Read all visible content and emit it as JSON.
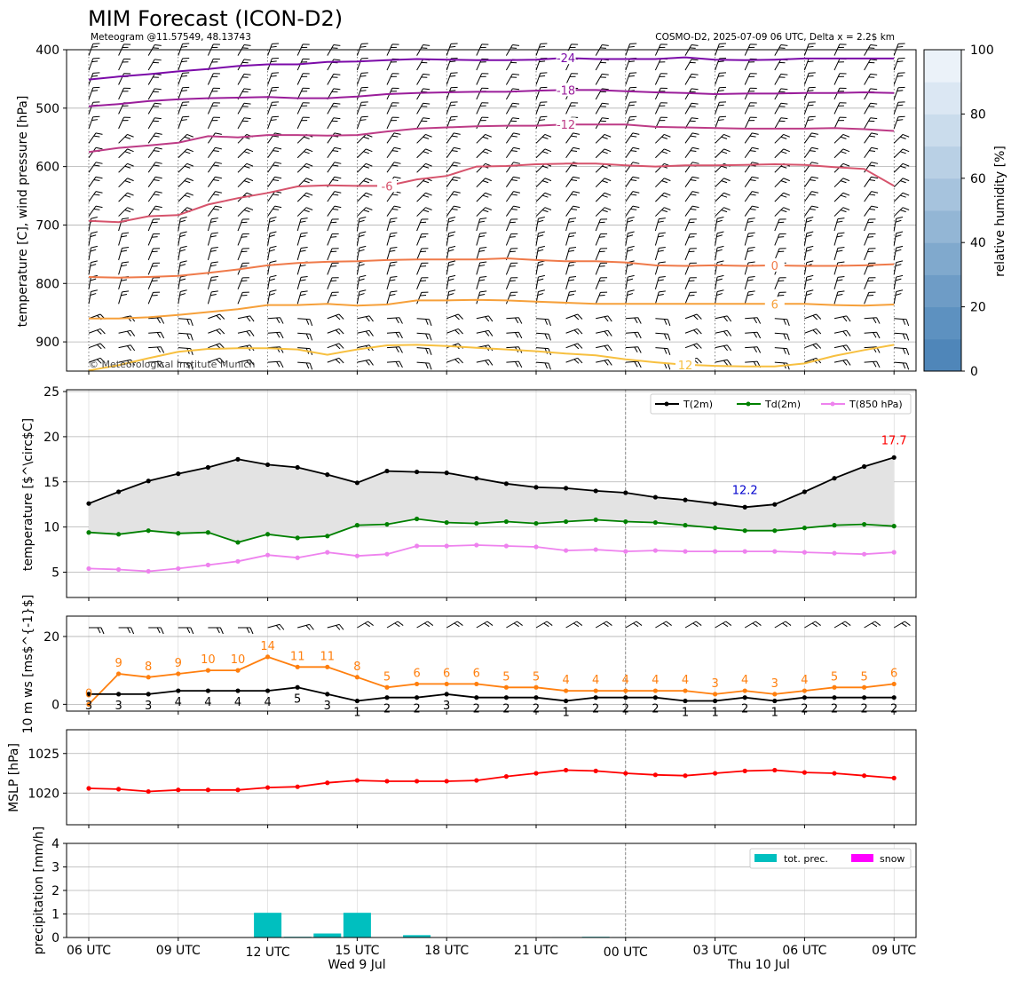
{
  "header": {
    "title": "MIM Forecast (ICON-D2)",
    "location": "Meteogram @11.57549, 48.13743",
    "model_info": "COSMO-D2, 2025-07-09 06 UTC, Delta x = 2.2$ km",
    "copyright": "© Meteorological Institute Munich"
  },
  "time_axis": {
    "tick_labels": [
      "06 UTC",
      "09 UTC",
      "12 UTC",
      "15 UTC",
      "18 UTC",
      "21 UTC",
      "00 UTC",
      "03 UTC",
      "06 UTC",
      "09 UTC"
    ],
    "day_labels": [
      "Wed 9 Jul",
      "Thu 10 Jul"
    ]
  },
  "colors": {
    "t2m": "#000000",
    "td2m": "#008000",
    "t850": "#ee82ee",
    "wind_gust": "#ff7f0e",
    "wind_speed": "#000000",
    "mslp": "#ff0000",
    "precip": "#00bfbf",
    "snow": "#ff00ff",
    "max_label": "#ff0000",
    "min_label": "#0000cd"
  },
  "chart_data": [
    {
      "type": "line",
      "name": "upper-air",
      "ylabel": "temperature [C], wind pressure [hPa]",
      "yticks": [
        400,
        500,
        600,
        700,
        800,
        900
      ],
      "ylim": [
        950,
        400
      ],
      "isotherm_labels": [
        "-24",
        "-18",
        "-12",
        "-6",
        "0",
        "6",
        "12"
      ],
      "isotherms": [
        {
          "label": "-24",
          "color": "#7b0aa8",
          "pressure": [
            451,
            446,
            442,
            437,
            433,
            428,
            425,
            425,
            421,
            420,
            418,
            416,
            417,
            418,
            418,
            417,
            414,
            416,
            416,
            416,
            413,
            417,
            418,
            417,
            415,
            415,
            415,
            415
          ]
        },
        {
          "label": "-18",
          "color": "#9a1d9a",
          "pressure": [
            497,
            493,
            488,
            485,
            483,
            482,
            481,
            483,
            483,
            480,
            476,
            474,
            473,
            472,
            472,
            470,
            469,
            469,
            471,
            473,
            474,
            476,
            475,
            475,
            474,
            474,
            473,
            474
          ]
        },
        {
          "label": "-12",
          "color": "#bd3b86",
          "pressure": [
            575,
            568,
            564,
            559,
            548,
            550,
            546,
            546,
            547,
            546,
            540,
            535,
            533,
            531,
            530,
            530,
            528,
            528,
            528,
            532,
            533,
            534,
            535,
            535,
            535,
            534,
            536,
            539
          ]
        },
        {
          "label": "-6",
          "color": "#d6536c",
          "pressure": [
            693,
            695,
            685,
            683,
            665,
            654,
            645,
            634,
            632,
            633,
            633,
            622,
            616,
            600,
            599,
            596,
            595,
            595,
            598,
            600,
            598,
            598,
            597,
            596,
            597,
            601,
            604,
            633
          ]
        },
        {
          "label": "0",
          "color": "#ef7a4a",
          "pressure": [
            789,
            790,
            789,
            787,
            782,
            776,
            769,
            765,
            763,
            762,
            760,
            759,
            759,
            759,
            757,
            760,
            762,
            762,
            764,
            769,
            770,
            769,
            770,
            769,
            770,
            770,
            769,
            767
          ]
        },
        {
          "label": "6",
          "color": "#f6a03a",
          "pressure": [
            860,
            860,
            858,
            854,
            849,
            844,
            837,
            837,
            835,
            838,
            836,
            829,
            829,
            828,
            829,
            831,
            833,
            835,
            835,
            835,
            835,
            835,
            835,
            835,
            835,
            837,
            838,
            836
          ]
        },
        {
          "label": "12",
          "color": "#f7c040",
          "pressure": [
            949,
            940,
            928,
            917,
            912,
            911,
            911,
            913,
            922,
            913,
            906,
            905,
            907,
            910,
            913,
            916,
            920,
            923,
            930,
            935,
            939,
            941,
            942,
            942,
            937,
            924,
            914,
            905
          ]
        }
      ],
      "colorbar": {
        "label": "relative humidity [%]",
        "ticks": [
          0,
          20,
          40,
          60,
          80,
          100
        ]
      }
    },
    {
      "type": "line",
      "name": "surface-temperature",
      "ylabel": "temperature [$^\\circ$C]",
      "ylim": [
        2.2,
        25.2
      ],
      "yticks": [
        5,
        10,
        15,
        20,
        25
      ],
      "series": [
        {
          "name": "T(2m)",
          "values": [
            12.6,
            13.9,
            15.1,
            15.9,
            16.6,
            17.5,
            16.9,
            16.6,
            15.8,
            14.9,
            16.2,
            16.1,
            16.0,
            15.4,
            14.8,
            14.4,
            14.3,
            14.0,
            13.8,
            13.3,
            13.0,
            12.6,
            12.2,
            12.5,
            13.9,
            15.4,
            16.7,
            17.7
          ]
        },
        {
          "name": "Td(2m)",
          "values": [
            9.4,
            9.2,
            9.6,
            9.3,
            9.4,
            8.3,
            9.2,
            8.8,
            9.0,
            10.2,
            10.3,
            10.9,
            10.5,
            10.4,
            10.6,
            10.4,
            10.6,
            10.8,
            10.6,
            10.5,
            10.2,
            9.9,
            9.6,
            9.6,
            9.9,
            10.2,
            10.3,
            10.1
          ]
        },
        {
          "name": "T(850 hPa)",
          "values": [
            5.4,
            5.3,
            5.1,
            5.4,
            5.8,
            6.2,
            6.9,
            6.6,
            7.2,
            6.8,
            7.0,
            7.9,
            7.9,
            8.0,
            7.9,
            7.8,
            7.4,
            7.5,
            7.3,
            7.4,
            7.3,
            7.3,
            7.3,
            7.3,
            7.2,
            7.1,
            7.0,
            7.2
          ]
        }
      ],
      "annotations": [
        {
          "text": "17.7"
        },
        {
          "text": "12.2"
        }
      ]
    },
    {
      "type": "line",
      "name": "wind-10m",
      "ylabel": "10 m ws [ms$^{-1}$]",
      "ylim": [
        -2,
        26
      ],
      "yticks": [
        0,
        20
      ],
      "series": [
        {
          "name": "gust",
          "values": [
            0,
            9,
            8,
            9,
            10,
            10,
            14,
            11,
            11,
            8,
            5,
            6,
            6,
            6,
            5,
            5,
            4,
            4,
            4,
            4,
            4,
            3,
            4,
            3,
            4,
            5,
            5,
            6
          ]
        },
        {
          "name": "speed",
          "values": [
            3,
            3,
            3,
            4,
            4,
            4,
            4,
            5,
            3,
            1,
            2,
            2,
            3,
            2,
            2,
            2,
            1,
            2,
            2,
            2,
            1,
            1,
            2,
            1,
            2,
            2,
            2,
            2
          ]
        }
      ],
      "gust_labels": [
        "0",
        "9",
        "8",
        "9",
        "10",
        "10",
        "14",
        "11",
        "11",
        "8",
        "5",
        "6",
        "6",
        "6",
        "5",
        "5",
        "4",
        "4",
        "4",
        "4",
        "4",
        "3",
        "4",
        "3",
        "4",
        "5",
        "5",
        "6"
      ],
      "speed_labels": [
        "3",
        "3",
        "3",
        "4",
        "4",
        "4",
        "4",
        "5",
        "3",
        "1",
        "2",
        "2",
        "3",
        "2",
        "2",
        "2",
        "1",
        "2",
        "2",
        "2",
        "1",
        "1",
        "2",
        "1",
        "2",
        "2",
        "2",
        "2"
      ]
    },
    {
      "type": "line",
      "name": "mslp",
      "ylabel": "MSLP [hPa]",
      "ylim": [
        1016,
        1028
      ],
      "yticks": [
        1020,
        1025
      ],
      "series": [
        {
          "name": "MSLP",
          "values": [
            1020.6,
            1020.5,
            1020.2,
            1020.4,
            1020.4,
            1020.4,
            1020.7,
            1020.8,
            1021.3,
            1021.6,
            1021.5,
            1021.5,
            1021.5,
            1021.6,
            1022.1,
            1022.5,
            1022.9,
            1022.8,
            1022.5,
            1022.3,
            1022.2,
            1022.5,
            1022.8,
            1022.9,
            1022.6,
            1022.5,
            1022.2,
            1021.9
          ]
        }
      ]
    },
    {
      "type": "bar",
      "name": "precipitation",
      "ylabel": "precipitation [mm/h]",
      "ylim": [
        0,
        4
      ],
      "yticks": [
        0,
        1,
        2,
        3,
        4
      ],
      "series": [
        {
          "name": "tot. prec.",
          "values": [
            0,
            0,
            0,
            0,
            0,
            0,
            1.05,
            0.03,
            0.17,
            1.05,
            0,
            0.1,
            0,
            0,
            0,
            0,
            0.02,
            0.03,
            0.02,
            0,
            0,
            0,
            0,
            0,
            0,
            0,
            0,
            0
          ]
        },
        {
          "name": "snow",
          "values": [
            0,
            0,
            0,
            0,
            0,
            0,
            0,
            0,
            0,
            0,
            0,
            0,
            0,
            0,
            0,
            0,
            0,
            0,
            0,
            0,
            0,
            0,
            0,
            0,
            0,
            0,
            0,
            0
          ]
        }
      ]
    }
  ]
}
